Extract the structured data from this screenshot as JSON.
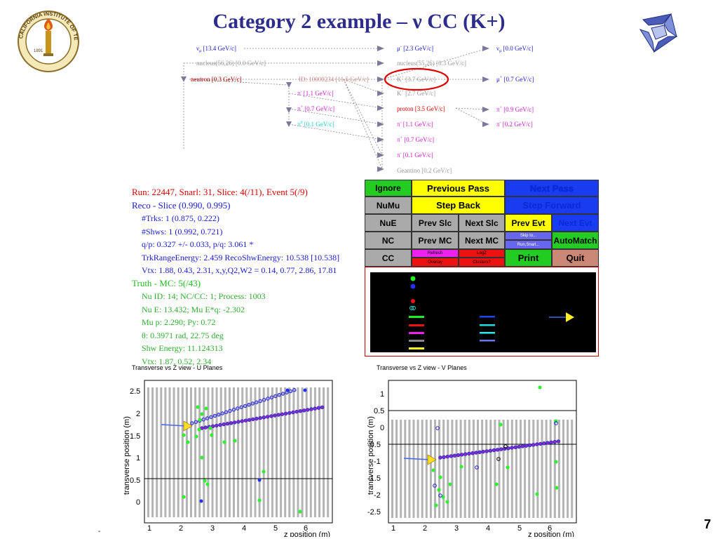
{
  "slide": {
    "title": "Category 2 example – ν CC (K+)",
    "page_number": "7",
    "footer_dash": "-"
  },
  "tree": {
    "nodes": {
      "numu_in": "ν",
      "numu_in_sub": "μ",
      "numu_in_val": "[13.4 GeV/c]",
      "nucleus_in": "nucleus(56,26) [0.0 GeV/c]",
      "neutron": "neutron [0.3 GeV/c]",
      "id_node": "ID: 10000234 [11.5 GeV/c]",
      "pim1": "π",
      "pim1_val": "[1.1 GeV/c]",
      "pip07": "π",
      "pip07_val": "[0.7 GeV/c]",
      "pi0": "π",
      "pi0_val": "[0.1 GeV/c]",
      "mum": "μ",
      "mum_val": "[2.3 GeV/c]",
      "nucleus_out": "nucleus(55,26) [0.3 GeV/c]",
      "kp": "K",
      "kp_val": "[3.7 GeV/c]",
      "k27": "K",
      "k27_val": "[2.7 GeV/c]",
      "proton": "proton [3.5 GeV/c]",
      "pi11": "π",
      "pi11_val": "[1.1 GeV/c]",
      "pi07b": "π",
      "pi07b_val": "[0.7 GeV/c]",
      "pi01": "π",
      "pi01_val": "[0.1 GeV/c]",
      "geantino": "Geantino [0.2 GeV/c]",
      "numu_out": "ν",
      "numu_out_sub": "μ",
      "numu_out_val": "[0.0 GeV/c]",
      "mup": "μ",
      "mup_val": "[0.7 GeV/c]",
      "pip09": "π",
      "pip09_val": "[0.9 GeV/c]",
      "pim02": "π",
      "pim02_val": "[0.2 GeV/c]"
    }
  },
  "info": {
    "run_line": "Run: 22447, Snarl: 31, Slice: 4(/11), Event 5(/9)",
    "reco_line": "Reco - Slice (0.990, 0.995)",
    "reco_items": [
      "#Trks: 1 (0.875, 0.222)",
      "#Shws: 1 (0.992, 0.721)",
      "q/p: 0.327 +/- 0.033,  p/q: 3.061 *",
      "TrkRangeEnergy: 2.459     RecoShwEnergy: 10.538 [10.538]",
      "Vtx: 1.88, 0.43, 2.31,  x,y,Q2,W2  = 0.14, 0.77, 2.86, 17.81"
    ],
    "truth_line": "Truth - MC: 5(/43)",
    "truth_items": [
      "Nu ID: 14;  NC/CC: 1;  Process: 1003",
      "Nu E: 13.432;  Mu E*q: -2.302",
      "Mu p: 2.290;  Py: 0.72",
      "θ: 0.3971 rad, 22.75 deg",
      "Shw Energy: 11.124313",
      "Vtx: 1.87, 0.52, 2.34"
    ]
  },
  "panel": {
    "ignore": "Ignore",
    "previous_pass": "Previous Pass",
    "next_pass": "Next Pass",
    "numu": "NuMu",
    "step_back": "Step Back",
    "step_forward": "Step Forward",
    "nue": "NuE",
    "prev_slc": "Prev Slc",
    "next_slc": "Next Slc",
    "prev_evt": "Prev Evt",
    "next_evt": "Next Evt",
    "nc": "NC",
    "prev_mc": "Prev MC",
    "next_mc": "Next MC",
    "skip_to": "Skip to...",
    "run_snarl": "Run,Snarl...",
    "automatch": "AutoMatch",
    "cc": "CC",
    "refresh": "Refresh",
    "logz": "LogZ",
    "overlay": "Overlay",
    "clusters": "Clusters?",
    "print": "Print",
    "quit": "Quit"
  },
  "plots": {
    "u": {
      "title": "Transverse vs Z view - U Planes",
      "ylabel": "transverse position (m)",
      "xlabel": "z position (m)",
      "xticks": [
        "1",
        "2",
        "3",
        "4",
        "5",
        "6"
      ],
      "yticks": [
        "0",
        "0.5",
        "1",
        "1.5",
        "2",
        "2.5"
      ]
    },
    "v": {
      "title": "Transverse vs Z view - V Planes",
      "ylabel": "transverse position (m)",
      "xlabel": "z position (m)",
      "xticks": [
        "1",
        "2",
        "3",
        "4",
        "5",
        "6"
      ],
      "yticks": [
        "-2.5",
        "-2",
        "-1.5",
        "-1",
        "-0.5",
        "0",
        "0.5",
        "1"
      ]
    }
  },
  "colors": {
    "title": "#2d2d8c",
    "run": "#dd0000",
    "reco": "#1a1ad0",
    "truth": "#22bb22",
    "truth_items": "#33aa33",
    "reco_items": "#1a1ad0"
  }
}
